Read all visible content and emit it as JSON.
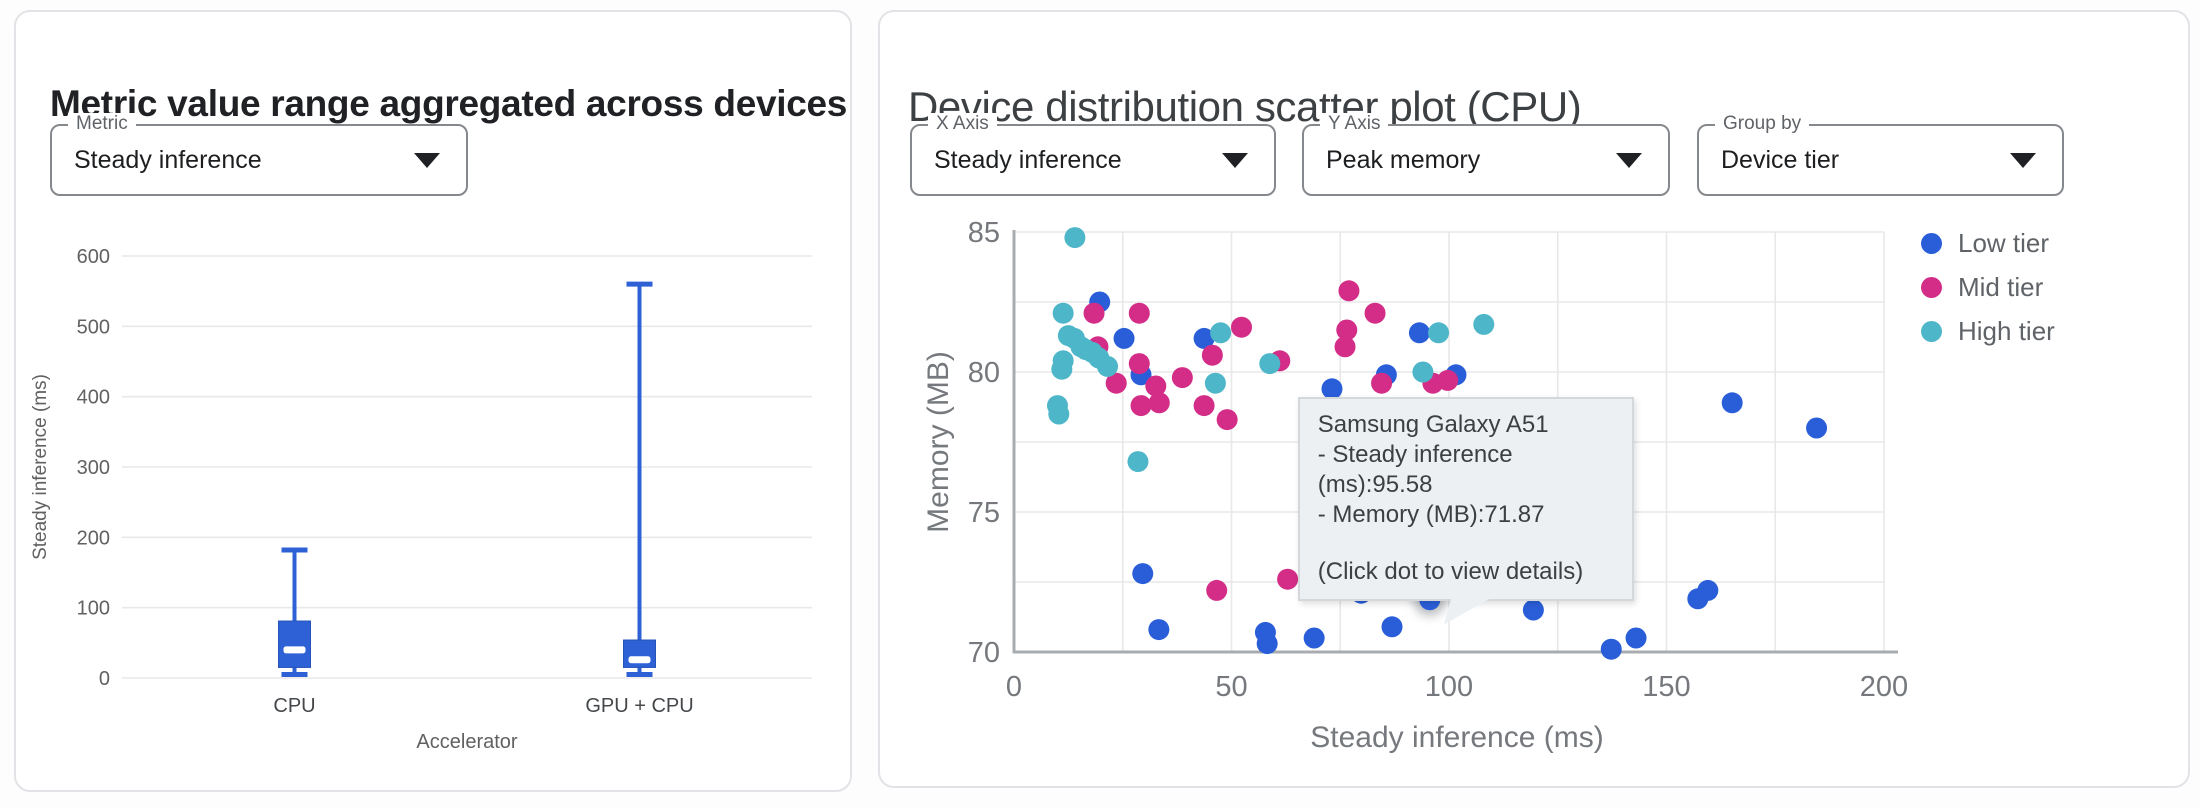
{
  "left_panel": {
    "title": "Metric value range aggregated across devices",
    "metric_select": {
      "label": "Metric",
      "value": "Steady inference"
    }
  },
  "right_panel": {
    "title": "Device distribution scatter plot (CPU)",
    "selects": {
      "x_axis": {
        "label": "X Axis",
        "value": "Steady inference"
      },
      "y_axis": {
        "label": "Y Axis",
        "value": "Peak memory"
      },
      "group_by": {
        "label": "Group by",
        "value": "Device tier"
      }
    },
    "tooltip": {
      "device": "Samsung Galaxy A51",
      "metric_line": "- Steady inference (ms):95.58",
      "memory_line": "- Memory (MB):71.87",
      "hint": "(Click dot to view details)",
      "anchor_x": 95.58,
      "anchor_y": 71.87
    }
  },
  "colors": {
    "low_tier": "#2a5ed9",
    "mid_tier": "#d32d87",
    "high_tier": "#4db6c8",
    "box_fill": "#2e61d6",
    "box_stroke": "#2553b8",
    "grid": "#e8e8e8",
    "axis_line": "#a8abaf",
    "tick_label_left": "#616161",
    "tick_label_right": "#75787c",
    "axis_title": "#75787c",
    "category_label": "#45484b",
    "tooltip_bg": "#edf0f2"
  },
  "chart_data": [
    {
      "type": "boxplot",
      "title": "Metric value range aggregated across devices",
      "xlabel": "Accelerator",
      "ylabel": "Steady inference (ms)",
      "ylim": [
        0,
        600
      ],
      "yticks": [
        0,
        100,
        200,
        300,
        400,
        500,
        600
      ],
      "grid": true,
      "categories": [
        "CPU",
        "GPU + CPU"
      ],
      "values": [
        {
          "min": 5,
          "q1": 15,
          "median": 40,
          "q3": 81,
          "max": 182
        },
        {
          "min": 5,
          "q1": 15,
          "median": 26,
          "q3": 54,
          "max": 560
        }
      ]
    },
    {
      "type": "scatter",
      "title": "Device distribution scatter plot (CPU)",
      "xlabel": "Steady inference (ms)",
      "ylabel": "Memory (MB)",
      "xlim": [
        0,
        200
      ],
      "ylim": [
        70,
        85
      ],
      "xticks": [
        0,
        50,
        100,
        150,
        200
      ],
      "yticks": [
        70,
        75,
        80,
        85
      ],
      "x_minor_step": 25,
      "y_minor_step": 2.5,
      "grid": true,
      "legend_position": "right",
      "series": [
        {
          "name": "Low tier",
          "points": [
            [
              19.7,
              82.5
            ],
            [
              25.3,
              81.2
            ],
            [
              29.2,
              79.9
            ],
            [
              43.7,
              81.2
            ],
            [
              73.1,
              79.4
            ],
            [
              85.6,
              79.9
            ],
            [
              93.2,
              81.4
            ],
            [
              101.6,
              79.9
            ],
            [
              29.6,
              72.8
            ],
            [
              33.3,
              70.8
            ],
            [
              57.8,
              70.7
            ],
            [
              58.2,
              70.3
            ],
            [
              69,
              70.5
            ],
            [
              79.8,
              72.1
            ],
            [
              86.9,
              70.9
            ],
            [
              95.58,
              71.87
            ],
            [
              119.4,
              71.5
            ],
            [
              137.3,
              70.1
            ],
            [
              143,
              70.5
            ],
            [
              157.2,
              71.9
            ],
            [
              159.5,
              72.2
            ],
            [
              165.1,
              78.9
            ],
            [
              184.5,
              78
            ]
          ]
        },
        {
          "name": "Mid tier",
          "points": [
            [
              18.4,
              82.1
            ],
            [
              28.8,
              82.1
            ],
            [
              19.3,
              80.9
            ],
            [
              28.8,
              80.3
            ],
            [
              23.5,
              79.6
            ],
            [
              32.6,
              79.5
            ],
            [
              38.7,
              79.8
            ],
            [
              45.6,
              80.6
            ],
            [
              29.2,
              78.8
            ],
            [
              33.4,
              78.9
            ],
            [
              43.7,
              78.8
            ],
            [
              49,
              78.3
            ],
            [
              52.3,
              81.6
            ],
            [
              61.1,
              80.4
            ],
            [
              46.6,
              72.2
            ],
            [
              62.9,
              72.6
            ],
            [
              77,
              82.9
            ],
            [
              83,
              82.1
            ],
            [
              76.5,
              81.5
            ],
            [
              76.1,
              80.9
            ],
            [
              84.5,
              79.6
            ],
            [
              96.3,
              79.6
            ],
            [
              99.7,
              79.7
            ]
          ]
        },
        {
          "name": "High tier",
          "points": [
            [
              14,
              84.8
            ],
            [
              11.3,
              82.1
            ],
            [
              12.5,
              81.3
            ],
            [
              13.9,
              81.2
            ],
            [
              15.4,
              80.9
            ],
            [
              16.5,
              80.8
            ],
            [
              18,
              80.7
            ],
            [
              19.5,
              80.5
            ],
            [
              21.5,
              80.2
            ],
            [
              11.3,
              80.4
            ],
            [
              11,
              80.1
            ],
            [
              10,
              78.8
            ],
            [
              10.3,
              78.5
            ],
            [
              28.5,
              76.8
            ],
            [
              46.3,
              79.6
            ],
            [
              47.5,
              81.4
            ],
            [
              58.8,
              80.3
            ],
            [
              94,
              80
            ],
            [
              97.6,
              81.4
            ],
            [
              108,
              81.7
            ]
          ]
        }
      ],
      "highlight_point": {
        "series": "Low tier",
        "x": 95.58,
        "y": 71.87
      }
    }
  ]
}
